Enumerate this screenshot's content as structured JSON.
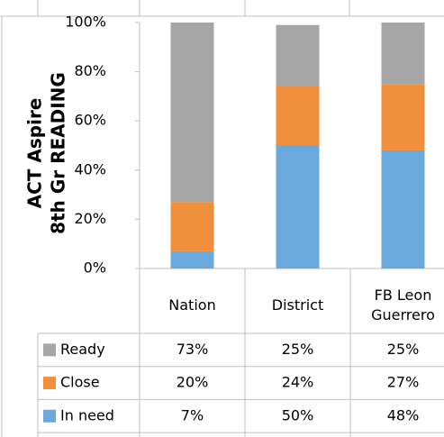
{
  "chart_data": {
    "type": "stacked_bar",
    "ylabel": [
      "ACT Aspire",
      "8th Gr READING"
    ],
    "categories": [
      "Nation",
      "District",
      "FB Leon Guerrero"
    ],
    "series": [
      {
        "name": "In need",
        "color": "#6aa9dc",
        "values": [
          7,
          50,
          48
        ],
        "value_labels": [
          "7%",
          "50%",
          "48%"
        ]
      },
      {
        "name": "Close",
        "color": "#f08f3c",
        "values": [
          20,
          24,
          27
        ],
        "value_labels": [
          "20%",
          "24%",
          "27%"
        ]
      },
      {
        "name": "Ready",
        "color": "#a6a6a6",
        "values": [
          73,
          25,
          25
        ],
        "value_labels": [
          "73%",
          "25%",
          "25%"
        ]
      }
    ],
    "ylim": [
      0,
      100
    ],
    "yticks": [
      {
        "value": 0,
        "label": "0%"
      },
      {
        "value": 20,
        "label": "20%"
      },
      {
        "value": 40,
        "label": "40%"
      },
      {
        "value": 60,
        "label": "60%"
      },
      {
        "value": 80,
        "label": "80%"
      },
      {
        "value": 100,
        "label": "100%"
      }
    ],
    "legend": "table"
  }
}
